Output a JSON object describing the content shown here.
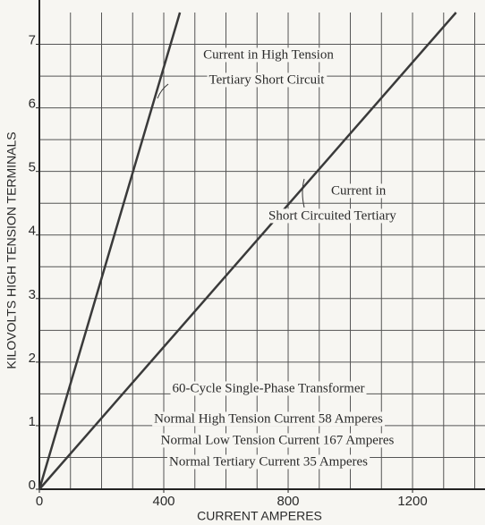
{
  "chart_data": {
    "type": "line",
    "xlabel": "CURRENT AMPERES",
    "ylabel": "KILOVOLTS HIGH TENSION TERMINALS",
    "xlim": [
      0,
      1433
    ],
    "ylim": [
      0,
      7.5
    ],
    "xticks": [
      0,
      400,
      800,
      1200
    ],
    "yticks": [
      0,
      1,
      2,
      3,
      4,
      5,
      6,
      7
    ],
    "grid": true,
    "xgrid": [
      100,
      200,
      300,
      400,
      500,
      600,
      700,
      800,
      900,
      1000,
      1100,
      1200,
      1300,
      1400
    ],
    "ygrid": [
      0.5,
      1,
      1.5,
      2,
      2.5,
      3,
      3.5,
      4,
      4.5,
      5,
      5.5,
      6,
      6.5,
      7
    ],
    "series": [
      {
        "color": "#3a3a3a",
        "x": [
          0,
          452
        ],
        "values": [
          0,
          7.5
        ]
      },
      {
        "color": "#3a3a3a",
        "x": [
          0,
          1340
        ],
        "values": [
          0,
          7.5
        ]
      }
    ],
    "annotations": [
      "Current in High Tension",
      "Tertiary Short Circuit",
      "Current in",
      "Short Circuited Tertiary",
      "60-Cycle Single-Phase Transformer",
      "Normal High Tension Current 58 Amperes",
      "Normal Low Tension Current 167 Amperes",
      "Normal Tertiary Current 35 Amperes"
    ]
  }
}
